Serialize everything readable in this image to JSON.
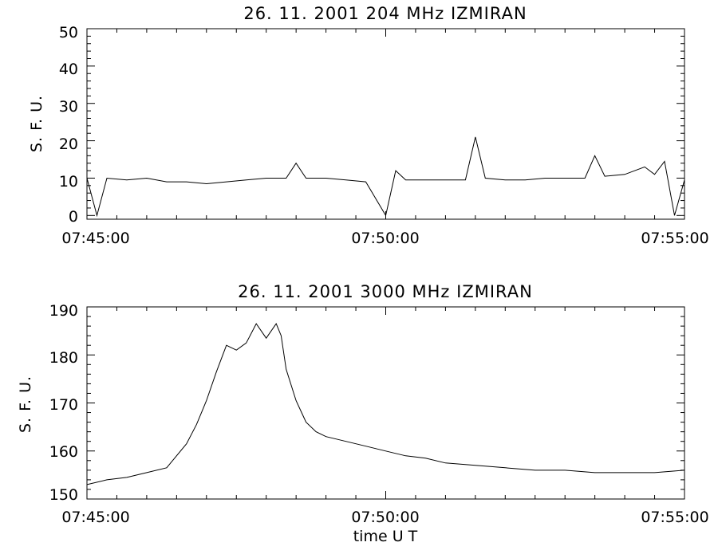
{
  "chart_data": [
    {
      "type": "line",
      "title": "26.  11.  2001    204 MHz    IZMIRAN",
      "ylabel": "S. F. U.",
      "xlabel": "",
      "ylim": [
        -1,
        50
      ],
      "yticks": [
        "0",
        "10",
        "20",
        "30",
        "40",
        "50"
      ],
      "xlim": [
        "07:45:00",
        "07:55:00"
      ],
      "xticks": [
        "07:45:00",
        "07:50:00",
        "07:55:00"
      ],
      "series": [
        {
          "x": [
            "07:45:00",
            "07:45:10",
            "07:45:20",
            "07:45:40",
            "07:46:00",
            "07:46:20",
            "07:46:40",
            "07:47:00",
            "07:47:20",
            "07:47:40",
            "07:48:00",
            "07:48:20",
            "07:48:30",
            "07:48:40",
            "07:49:00",
            "07:49:20",
            "07:49:40",
            "07:50:00",
            "07:50:10",
            "07:50:20",
            "07:50:40",
            "07:51:00",
            "07:51:20",
            "07:51:30",
            "07:51:40",
            "07:52:00",
            "07:52:20",
            "07:52:40",
            "07:53:00",
            "07:53:20",
            "07:53:30",
            "07:53:40",
            "07:54:00",
            "07:54:20",
            "07:54:30",
            "07:54:40",
            "07:54:50",
            "07:55:00"
          ],
          "y": [
            10,
            0,
            10,
            9.5,
            10,
            9,
            9,
            8.5,
            9,
            9.5,
            10,
            10,
            14,
            10,
            10,
            9.5,
            9,
            0,
            12,
            9.5,
            9.5,
            9.5,
            9.5,
            21,
            10,
            9.5,
            9.5,
            10,
            10,
            10,
            16,
            10.5,
            11,
            13,
            11,
            14.5,
            0,
            9.5
          ]
        }
      ]
    },
    {
      "type": "line",
      "title": "26.  11.  2001    3000 MHz    IZMIRAN",
      "ylabel": "S. F. U.",
      "xlabel": "time  U T",
      "ylim": [
        150,
        190
      ],
      "yticks": [
        "150",
        "160",
        "170",
        "180",
        "190"
      ],
      "xlim": [
        "07:45:00",
        "07:55:00"
      ],
      "xticks": [
        "07:45:00",
        "07:50:00",
        "07:55:00"
      ],
      "series": [
        {
          "x": [
            "07:45:00",
            "07:45:20",
            "07:45:40",
            "07:46:00",
            "07:46:20",
            "07:46:40",
            "07:46:50",
            "07:47:00",
            "07:47:10",
            "07:47:20",
            "07:47:30",
            "07:47:40",
            "07:47:50",
            "07:48:00",
            "07:48:10",
            "07:48:15",
            "07:48:20",
            "07:48:30",
            "07:48:40",
            "07:48:50",
            "07:49:00",
            "07:49:10",
            "07:49:20",
            "07:49:40",
            "07:50:00",
            "07:50:20",
            "07:50:40",
            "07:51:00",
            "07:51:30",
            "07:52:00",
            "07:52:30",
            "07:53:00",
            "07:53:30",
            "07:54:00",
            "07:54:30",
            "07:55:00"
          ],
          "y": [
            153,
            154,
            154.5,
            155.5,
            156.5,
            161.5,
            165.5,
            170.5,
            176.5,
            182,
            181,
            182.5,
            186.5,
            183.5,
            186.5,
            184,
            177,
            170.5,
            166,
            164,
            163,
            162.5,
            162,
            161,
            160,
            159,
            158.5,
            157.5,
            157,
            156.5,
            156,
            156,
            155.5,
            155.5,
            155.5,
            156
          ]
        }
      ]
    }
  ]
}
